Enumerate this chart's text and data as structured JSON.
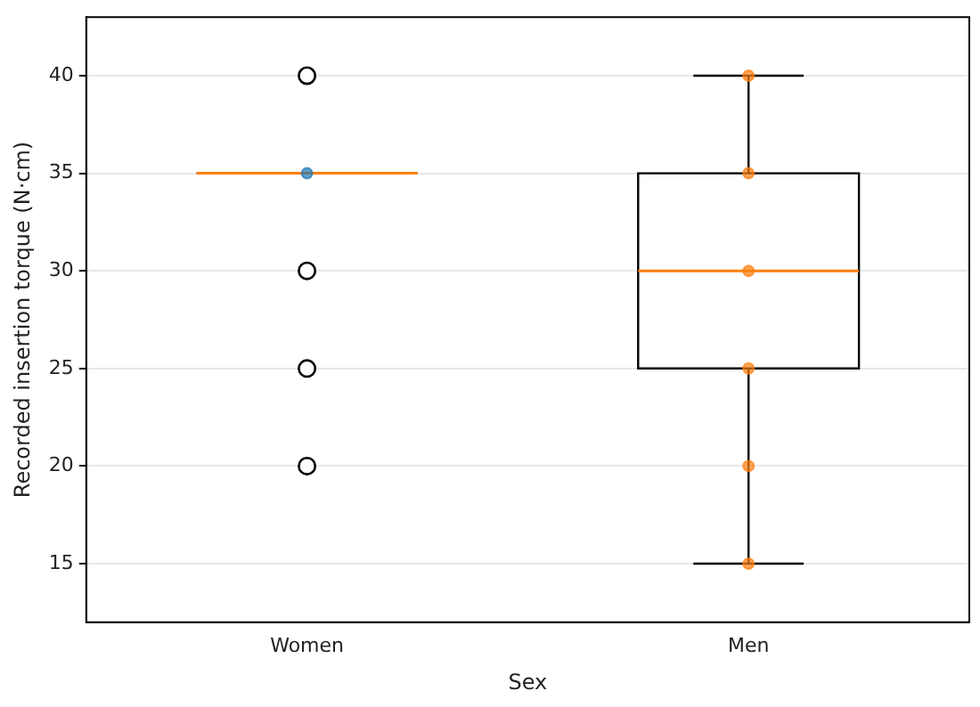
{
  "chart_data": {
    "type": "box",
    "xlabel": "Sex",
    "ylabel": "Recorded insertion torque (N·cm)",
    "categories": [
      "Women",
      "Men"
    ],
    "boxes": [
      {
        "low": 35,
        "q1": 35,
        "median": 35,
        "q3": 35,
        "high": 35,
        "outliers": [
          40,
          30,
          25,
          20
        ]
      },
      {
        "low": 15,
        "q1": 25,
        "median": 30,
        "q3": 35,
        "high": 40
      }
    ],
    "ylim": [
      12,
      43
    ],
    "yticks": [
      15,
      20,
      25,
      30,
      35,
      40
    ],
    "grid": "y",
    "legend": false,
    "series": [
      {
        "type": "scatter",
        "color": "#1f77b4",
        "x": [
          "Women"
        ],
        "values": [
          35
        ]
      },
      {
        "type": "scatter",
        "color": "#ff7f0e",
        "x": [
          "Men",
          "Men",
          "Men",
          "Men",
          "Men",
          "Men"
        ],
        "values": [
          40,
          35,
          30,
          25,
          20,
          15
        ]
      }
    ]
  }
}
